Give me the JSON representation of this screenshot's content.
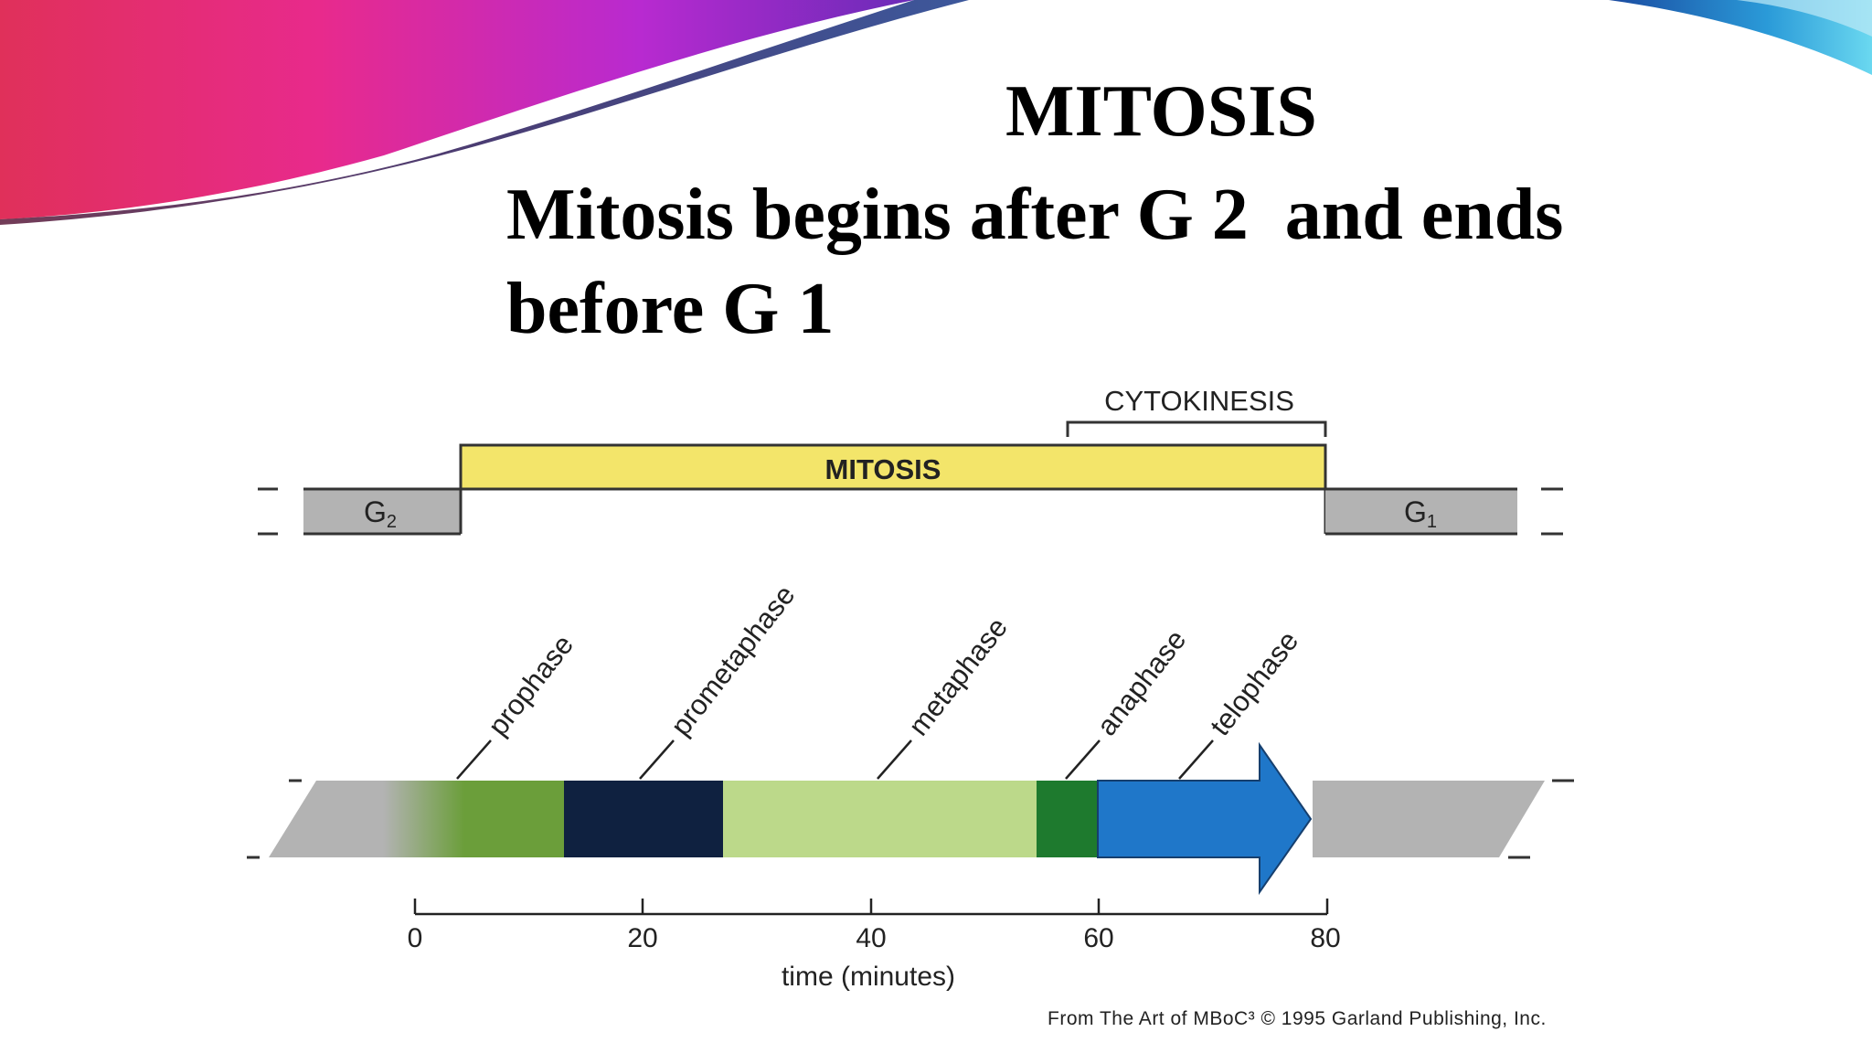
{
  "slide": {
    "title": "MITOSIS",
    "subtitle_line1": "Mitosis begins after G 2  and ends",
    "subtitle_line2": "before G 1"
  },
  "diagram": {
    "top_bar": {
      "cytokinesis_label": "CYTOKINESIS",
      "mitosis_label": "MITOSIS",
      "g2_label": "G",
      "g2_sub": "2",
      "g1_label": "G",
      "g1_sub": "1"
    },
    "phases": [
      {
        "name": "prophase",
        "color": "#6b9e3a"
      },
      {
        "name": "prometaphase",
        "color": "#0f2140"
      },
      {
        "name": "metaphase",
        "color": "#bcd98a"
      },
      {
        "name": "anaphase",
        "color": "#1e7a2e"
      },
      {
        "name": "telophase",
        "color": "#1f77c9"
      }
    ],
    "axis": {
      "ticks": [
        "0",
        "20",
        "40",
        "60",
        "80"
      ],
      "label": "time (minutes)"
    },
    "colors": {
      "mitosis_bar": "#f3e56a",
      "interphase_gray": "#b3b3b3"
    }
  },
  "credit": {
    "text": "From The Art of MBoC³ © 1995 Garland Publishing, Inc."
  }
}
